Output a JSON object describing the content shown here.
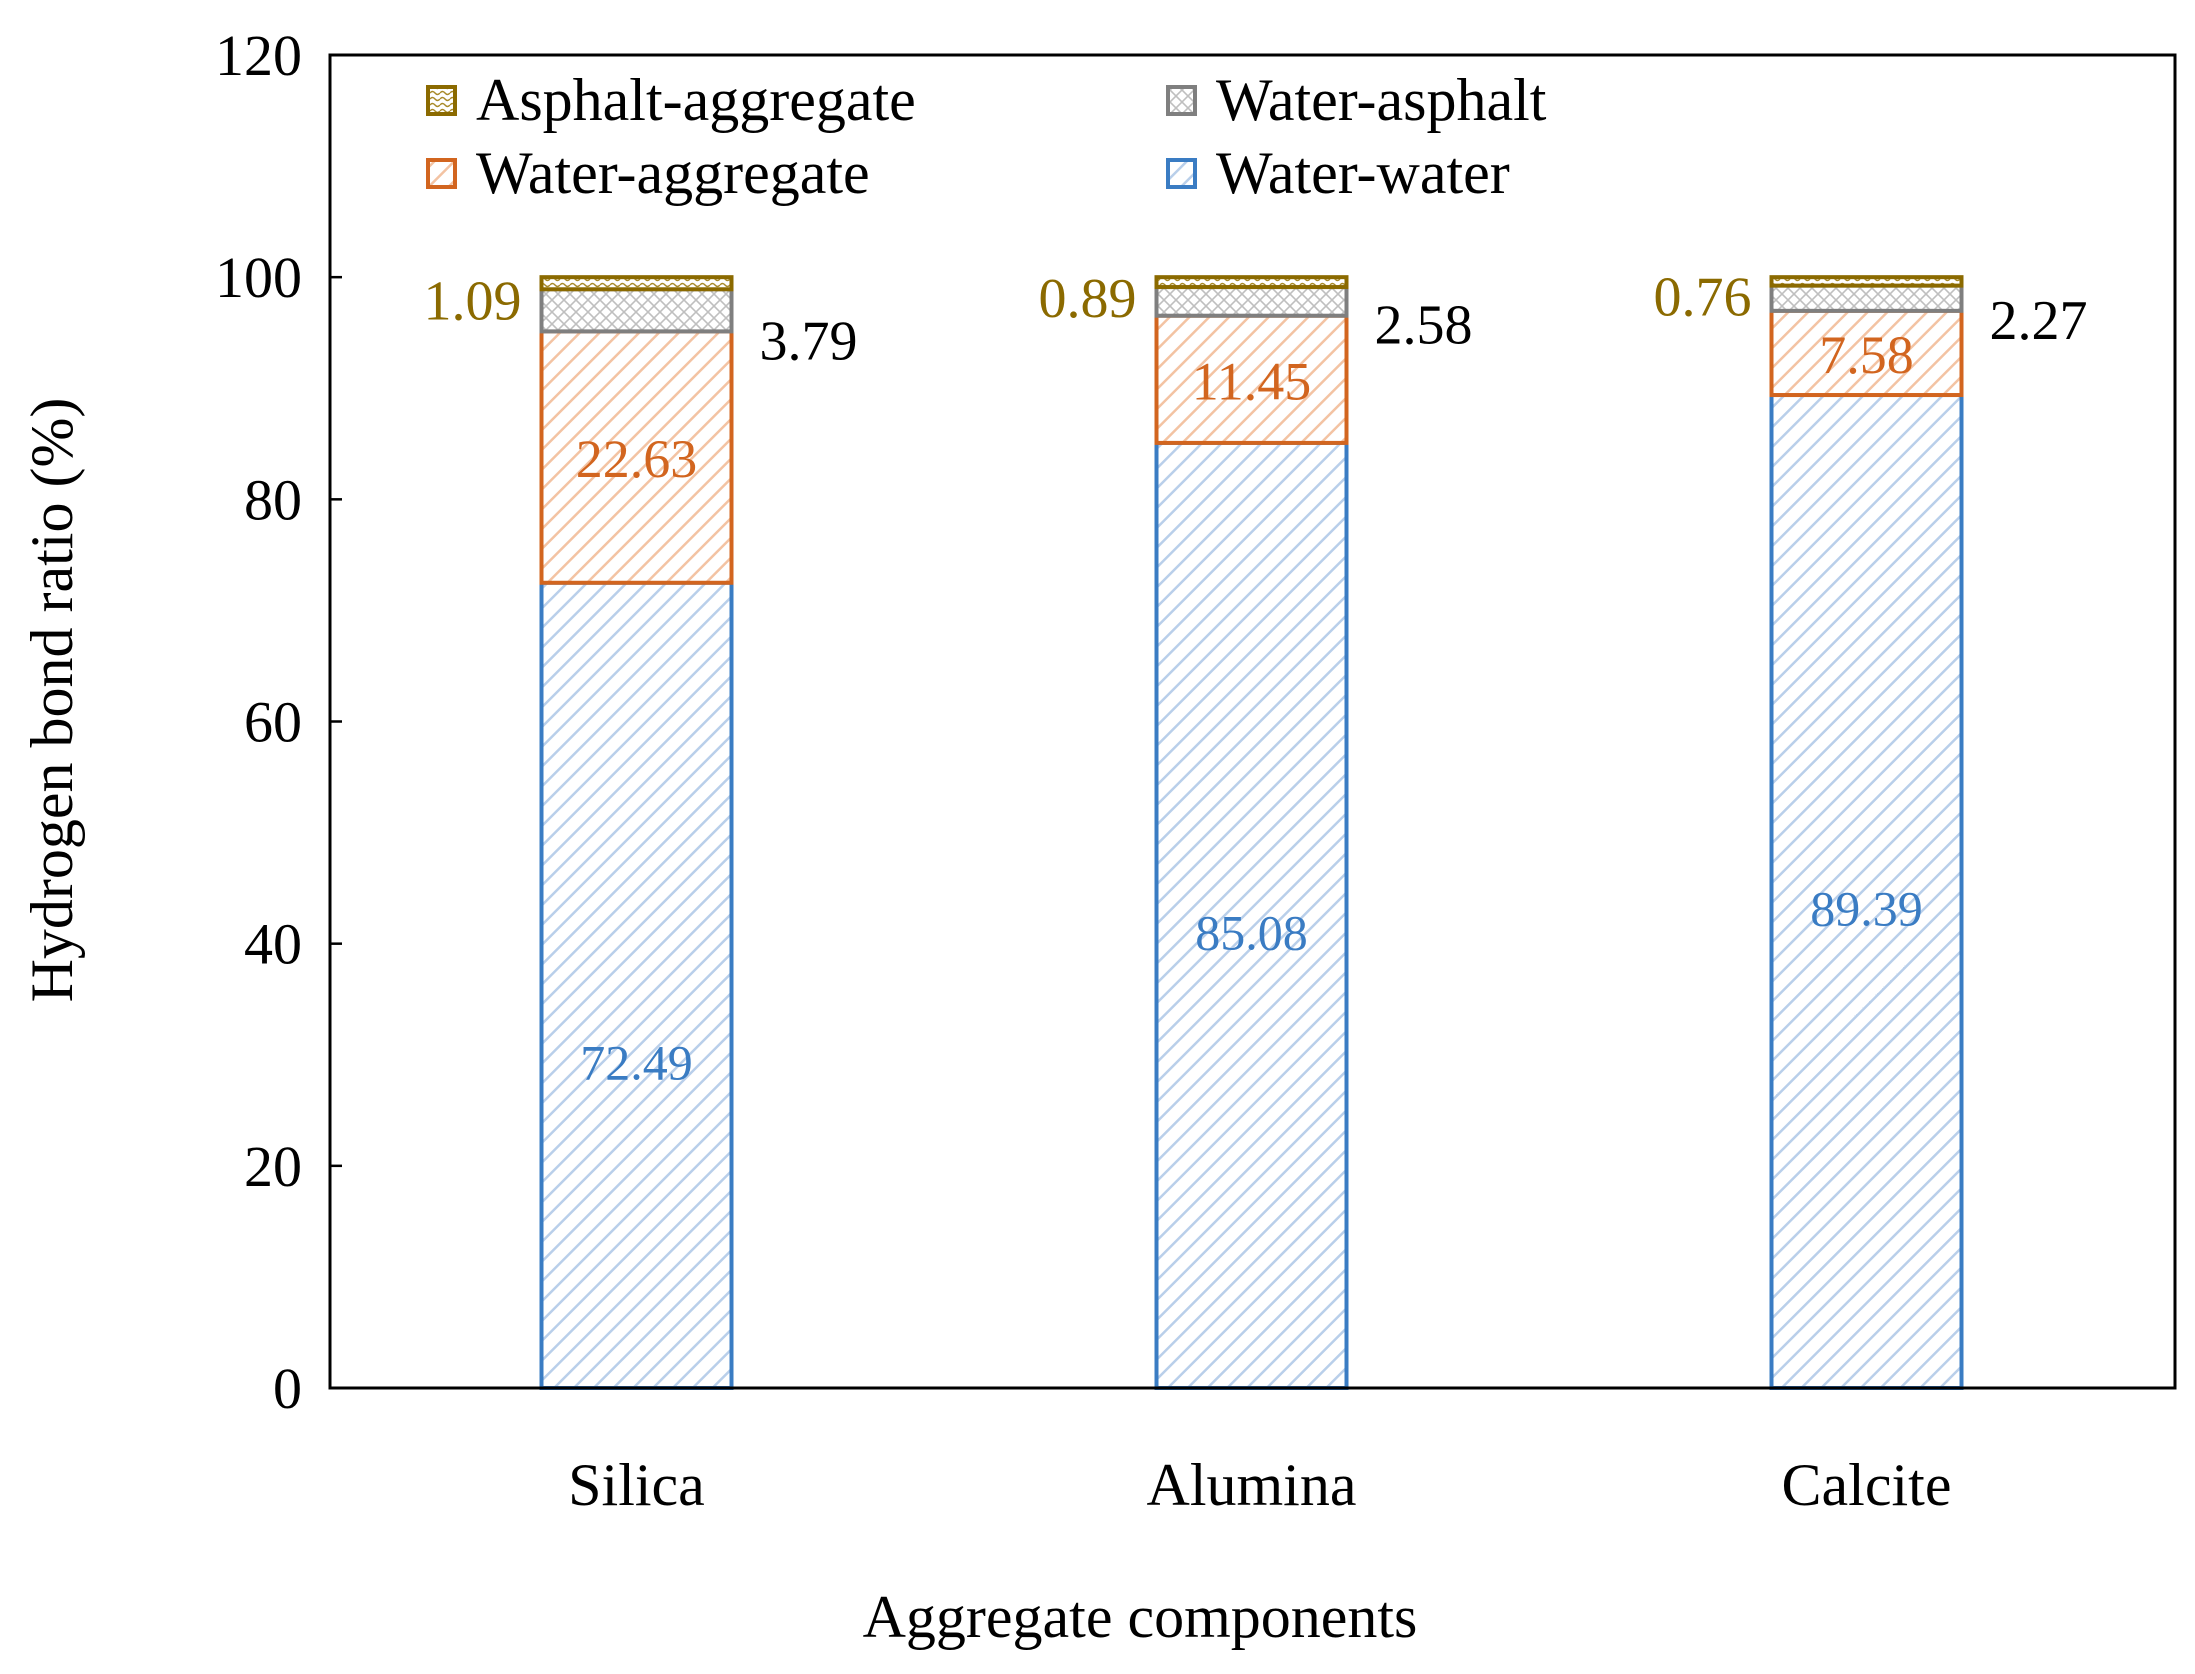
{
  "chart_data": {
    "type": "bar",
    "stacked": true,
    "xlabel": "Aggregate components",
    "ylabel": "Hydrogen bond ratio (%)",
    "ylim": [
      0,
      120
    ],
    "yticks": [
      0,
      20,
      40,
      60,
      80,
      100,
      120
    ],
    "categories": [
      "Silica",
      "Alumina",
      "Calcite"
    ],
    "series": [
      {
        "name": "Water-water",
        "values": [
          72.49,
          85.08,
          89.39
        ],
        "color": "#3A7CC3",
        "pattern": "diagonal"
      },
      {
        "name": "Water-aggregate",
        "values": [
          22.63,
          11.45,
          7.58
        ],
        "color": "#D2651F",
        "pattern": "diagonal"
      },
      {
        "name": "Water-asphalt",
        "values": [
          3.79,
          2.58,
          2.27
        ],
        "color": "#7F7F7F",
        "pattern": "crosshatch"
      },
      {
        "name": "Asphalt-aggregate",
        "values": [
          1.09,
          0.89,
          0.76
        ],
        "color": "#8B6A00",
        "pattern": "wave"
      }
    ],
    "labels": {
      "Water-water": [
        "72.49",
        "85.08",
        "89.39"
      ],
      "Water-aggregate": [
        "22.63",
        "11.45",
        "7.58"
      ],
      "Water-asphalt": [
        "3.79",
        "2.58",
        "2.27"
      ],
      "Asphalt-aggregate": [
        "1.09",
        "0.89",
        "0.76"
      ]
    },
    "legend": {
      "position": "top",
      "order": [
        "Asphalt-aggregate",
        "Water-asphalt",
        "Water-aggregate",
        "Water-water"
      ]
    },
    "grid": false
  }
}
